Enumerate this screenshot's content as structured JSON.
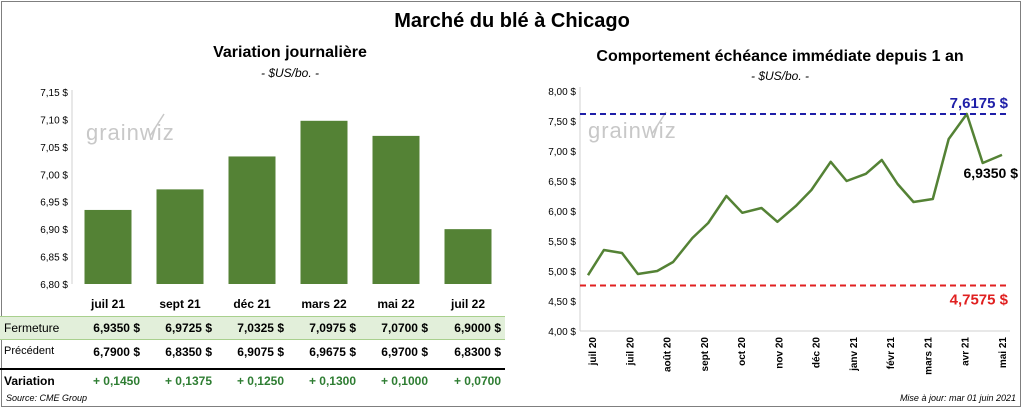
{
  "title": "Marché du blé à Chicago",
  "left": {
    "title": "Variation  journalière",
    "subtitle": "- $US/bo. -"
  },
  "right": {
    "title": "Comportement  échéance immédiate depuis 1 an",
    "subtitle": "- $US/bo. -"
  },
  "watermark": "grainwiz",
  "table": {
    "rows": [
      {
        "label": "Fermeture",
        "values": [
          "6,9350  $",
          "6,9725  $",
          "7,0325  $",
          "7,0975  $",
          "7,0700  $",
          "6,9000  $"
        ]
      },
      {
        "label": "Précédent",
        "values": [
          "6,7900  $",
          "6,8350  $",
          "6,9075  $",
          "6,9675  $",
          "6,9700  $",
          "6,8300  $"
        ]
      },
      {
        "label": "Variation",
        "values": [
          "+ 0,1450",
          "+ 0,1375",
          "+ 0,1250",
          "+ 0,1300",
          "+ 0,1000",
          "+ 0,0700"
        ]
      }
    ]
  },
  "footer": {
    "source": "Source: CME Group",
    "update": "Mise à jour: mar 01 juin 2021"
  },
  "colors": {
    "bar": "#548235",
    "line": "#548235",
    "high": "#1f1fa8",
    "low": "#e02020",
    "table_highlight": "#e2efda"
  },
  "chart_data": [
    {
      "type": "bar",
      "categories": [
        "juil 21",
        "sept 21",
        "déc 21",
        "mars 22",
        "mai 22",
        "juil 22"
      ],
      "values": [
        6.935,
        6.9725,
        7.0325,
        7.0975,
        7.07,
        6.9
      ],
      "ylim": [
        6.8,
        7.15
      ],
      "yticks": [
        "6,80 $",
        "6,85 $",
        "6,90 $",
        "6,95 $",
        "7,00 $",
        "7,05 $",
        "7,10 $",
        "7,15 $"
      ],
      "grid": false
    },
    {
      "type": "line",
      "xticks": [
        "juil 20",
        "juil 20",
        "août 20",
        "sept 20",
        "oct 20",
        "nov 20",
        "déc 20",
        "janv 21",
        "févr 21",
        "mars 21",
        "avr 21",
        "mai 21"
      ],
      "yticks": [
        "4,00 $",
        "4,50 $",
        "5,00 $",
        "5,50 $",
        "6,00 $",
        "6,50 $",
        "7,00 $",
        "7,50 $",
        "8,00 $"
      ],
      "ylim": [
        4.0,
        8.0
      ],
      "x": [
        "2020-06-01",
        "2020-06-15",
        "2020-07-01",
        "2020-07-15",
        "2020-08-01",
        "2020-08-15",
        "2020-09-01",
        "2020-09-15",
        "2020-10-01",
        "2020-10-15",
        "2020-11-01",
        "2020-11-15",
        "2020-12-01",
        "2020-12-15",
        "2021-01-01",
        "2021-01-15",
        "2021-02-01",
        "2021-02-15",
        "2021-03-01",
        "2021-03-15",
        "2021-04-01",
        "2021-04-15",
        "2021-05-01",
        "2021-05-15",
        "2021-06-01"
      ],
      "y": [
        4.93,
        5.35,
        5.3,
        4.95,
        5.0,
        5.15,
        5.55,
        5.8,
        6.25,
        5.97,
        6.05,
        5.82,
        6.08,
        6.35,
        6.82,
        6.5,
        6.62,
        6.85,
        6.45,
        6.15,
        6.2,
        7.2,
        7.6175,
        6.8,
        6.935
      ],
      "annotations": [
        {
          "label": "7,6175 $",
          "value": 7.6175,
          "color": "#1f1fa8"
        },
        {
          "label": "4,7575 $",
          "value": 4.7575,
          "color": "#e02020"
        },
        {
          "label": "6,9350 $",
          "value": 6.935
        }
      ]
    }
  ]
}
